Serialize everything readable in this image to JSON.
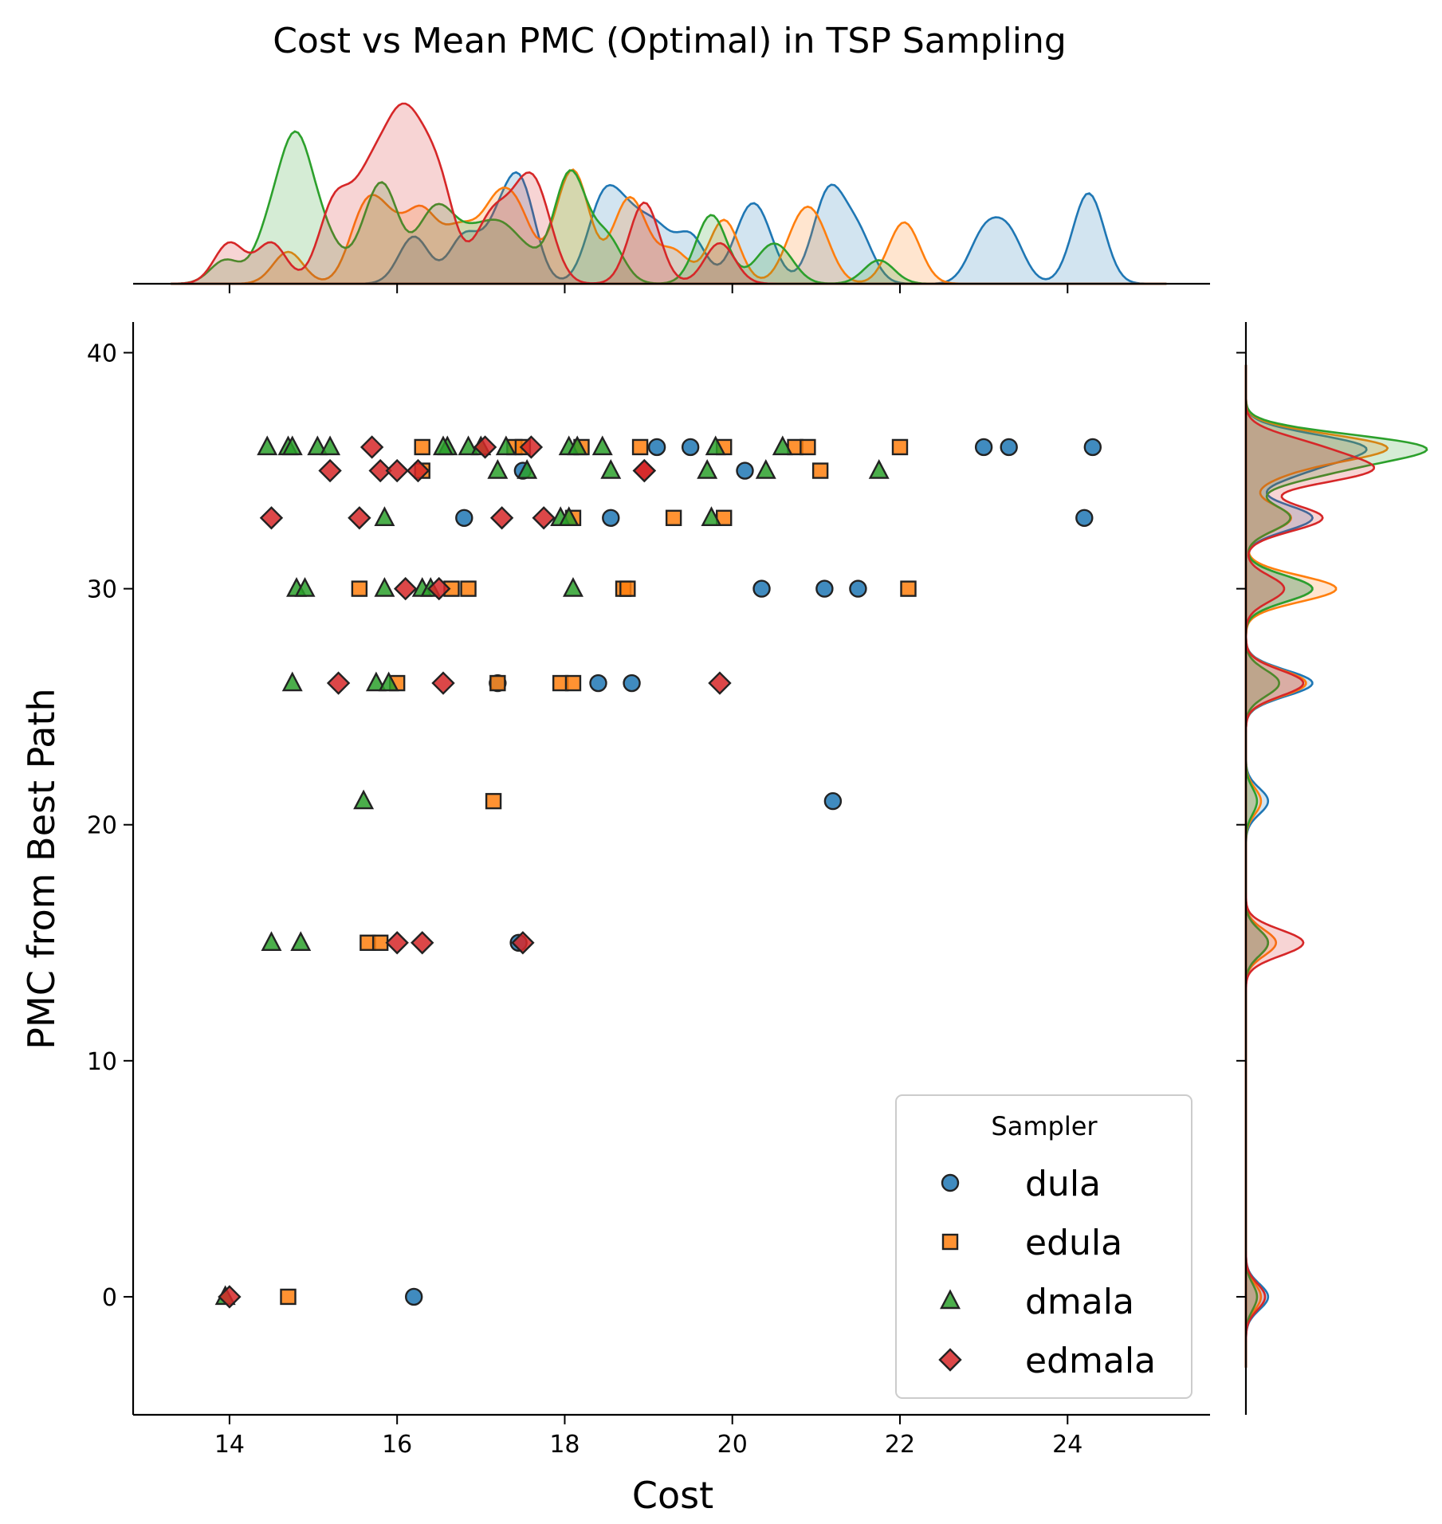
{
  "chart_data": {
    "type": "scatter",
    "title": "Cost vs Mean PMC (Optimal) in TSP Sampling",
    "xlabel": "Cost",
    "ylabel": "PMC from Best Path",
    "xlim": [
      12.85,
      25.7
    ],
    "ylim": [
      -5,
      41.3
    ],
    "xticks": [
      14,
      16,
      18,
      20,
      22,
      24
    ],
    "yticks": [
      0,
      10,
      20,
      30,
      40
    ],
    "grid": false,
    "legend": {
      "title": "Sampler",
      "placement": "lower-right"
    },
    "marginals": {
      "top": "kde",
      "right": "kde"
    },
    "series": [
      {
        "name": "dula",
        "marker": "circle",
        "color": "#1f77b4",
        "points": [
          [
            19.1,
            36
          ],
          [
            19.5,
            36
          ],
          [
            23.0,
            36
          ],
          [
            23.3,
            36
          ],
          [
            24.3,
            36
          ],
          [
            17.5,
            35
          ],
          [
            20.15,
            35
          ],
          [
            16.8,
            33
          ],
          [
            18.55,
            33
          ],
          [
            24.2,
            33
          ],
          [
            20.35,
            30
          ],
          [
            21.1,
            30
          ],
          [
            21.5,
            30
          ],
          [
            17.2,
            26
          ],
          [
            18.4,
            26
          ],
          [
            18.8,
            26
          ],
          [
            21.2,
            21
          ],
          [
            17.45,
            15
          ],
          [
            16.2,
            0
          ]
        ]
      },
      {
        "name": "edula",
        "marker": "square",
        "color": "#ff7f0e",
        "points": [
          [
            16.3,
            36
          ],
          [
            17.4,
            36
          ],
          [
            17.5,
            36
          ],
          [
            18.2,
            36
          ],
          [
            18.9,
            36
          ],
          [
            19.9,
            36
          ],
          [
            20.75,
            36
          ],
          [
            20.9,
            36
          ],
          [
            22.0,
            36
          ],
          [
            16.3,
            35
          ],
          [
            21.05,
            35
          ],
          [
            18.1,
            33
          ],
          [
            19.3,
            33
          ],
          [
            19.9,
            33
          ],
          [
            15.55,
            30
          ],
          [
            16.65,
            30
          ],
          [
            16.85,
            30
          ],
          [
            18.7,
            30
          ],
          [
            18.75,
            30
          ],
          [
            22.1,
            30
          ],
          [
            16.0,
            26
          ],
          [
            17.2,
            26
          ],
          [
            17.95,
            26
          ],
          [
            18.1,
            26
          ],
          [
            17.15,
            21
          ],
          [
            15.65,
            15
          ],
          [
            15.8,
            15
          ],
          [
            14.7,
            0
          ]
        ]
      },
      {
        "name": "dmala",
        "marker": "triangle",
        "color": "#2ca02c",
        "points": [
          [
            14.45,
            36
          ],
          [
            14.7,
            36
          ],
          [
            14.75,
            36
          ],
          [
            15.05,
            36
          ],
          [
            15.2,
            36
          ],
          [
            16.6,
            36
          ],
          [
            16.55,
            36
          ],
          [
            16.85,
            36
          ],
          [
            17.0,
            36
          ],
          [
            17.3,
            36
          ],
          [
            18.05,
            36
          ],
          [
            18.15,
            36
          ],
          [
            18.45,
            36
          ],
          [
            19.8,
            36
          ],
          [
            20.6,
            36
          ],
          [
            17.2,
            35
          ],
          [
            17.55,
            35
          ],
          [
            18.55,
            35
          ],
          [
            19.7,
            35
          ],
          [
            20.4,
            35
          ],
          [
            21.75,
            35
          ],
          [
            15.85,
            33
          ],
          [
            17.95,
            33
          ],
          [
            18.05,
            33
          ],
          [
            19.75,
            33
          ],
          [
            14.8,
            30
          ],
          [
            14.9,
            30
          ],
          [
            15.85,
            30
          ],
          [
            16.3,
            30
          ],
          [
            16.4,
            30
          ],
          [
            18.1,
            30
          ],
          [
            14.75,
            26
          ],
          [
            15.75,
            26
          ],
          [
            15.9,
            26
          ],
          [
            15.6,
            21
          ],
          [
            14.5,
            15
          ],
          [
            14.85,
            15
          ],
          [
            13.95,
            0
          ]
        ]
      },
      {
        "name": "edmala",
        "marker": "diamond",
        "color": "#d62728",
        "points": [
          [
            15.7,
            36
          ],
          [
            17.05,
            36
          ],
          [
            17.6,
            36
          ],
          [
            15.2,
            35
          ],
          [
            15.8,
            35
          ],
          [
            16.0,
            35
          ],
          [
            16.25,
            35
          ],
          [
            18.95,
            35
          ],
          [
            18.95,
            35
          ],
          [
            14.5,
            33
          ],
          [
            15.55,
            33
          ],
          [
            17.25,
            33
          ],
          [
            17.75,
            33
          ],
          [
            16.1,
            30
          ],
          [
            16.5,
            30
          ],
          [
            15.3,
            26
          ],
          [
            16.55,
            26
          ],
          [
            19.85,
            26
          ],
          [
            16.0,
            15
          ],
          [
            16.3,
            15
          ],
          [
            17.5,
            15
          ],
          [
            14.0,
            0
          ]
        ]
      }
    ]
  }
}
